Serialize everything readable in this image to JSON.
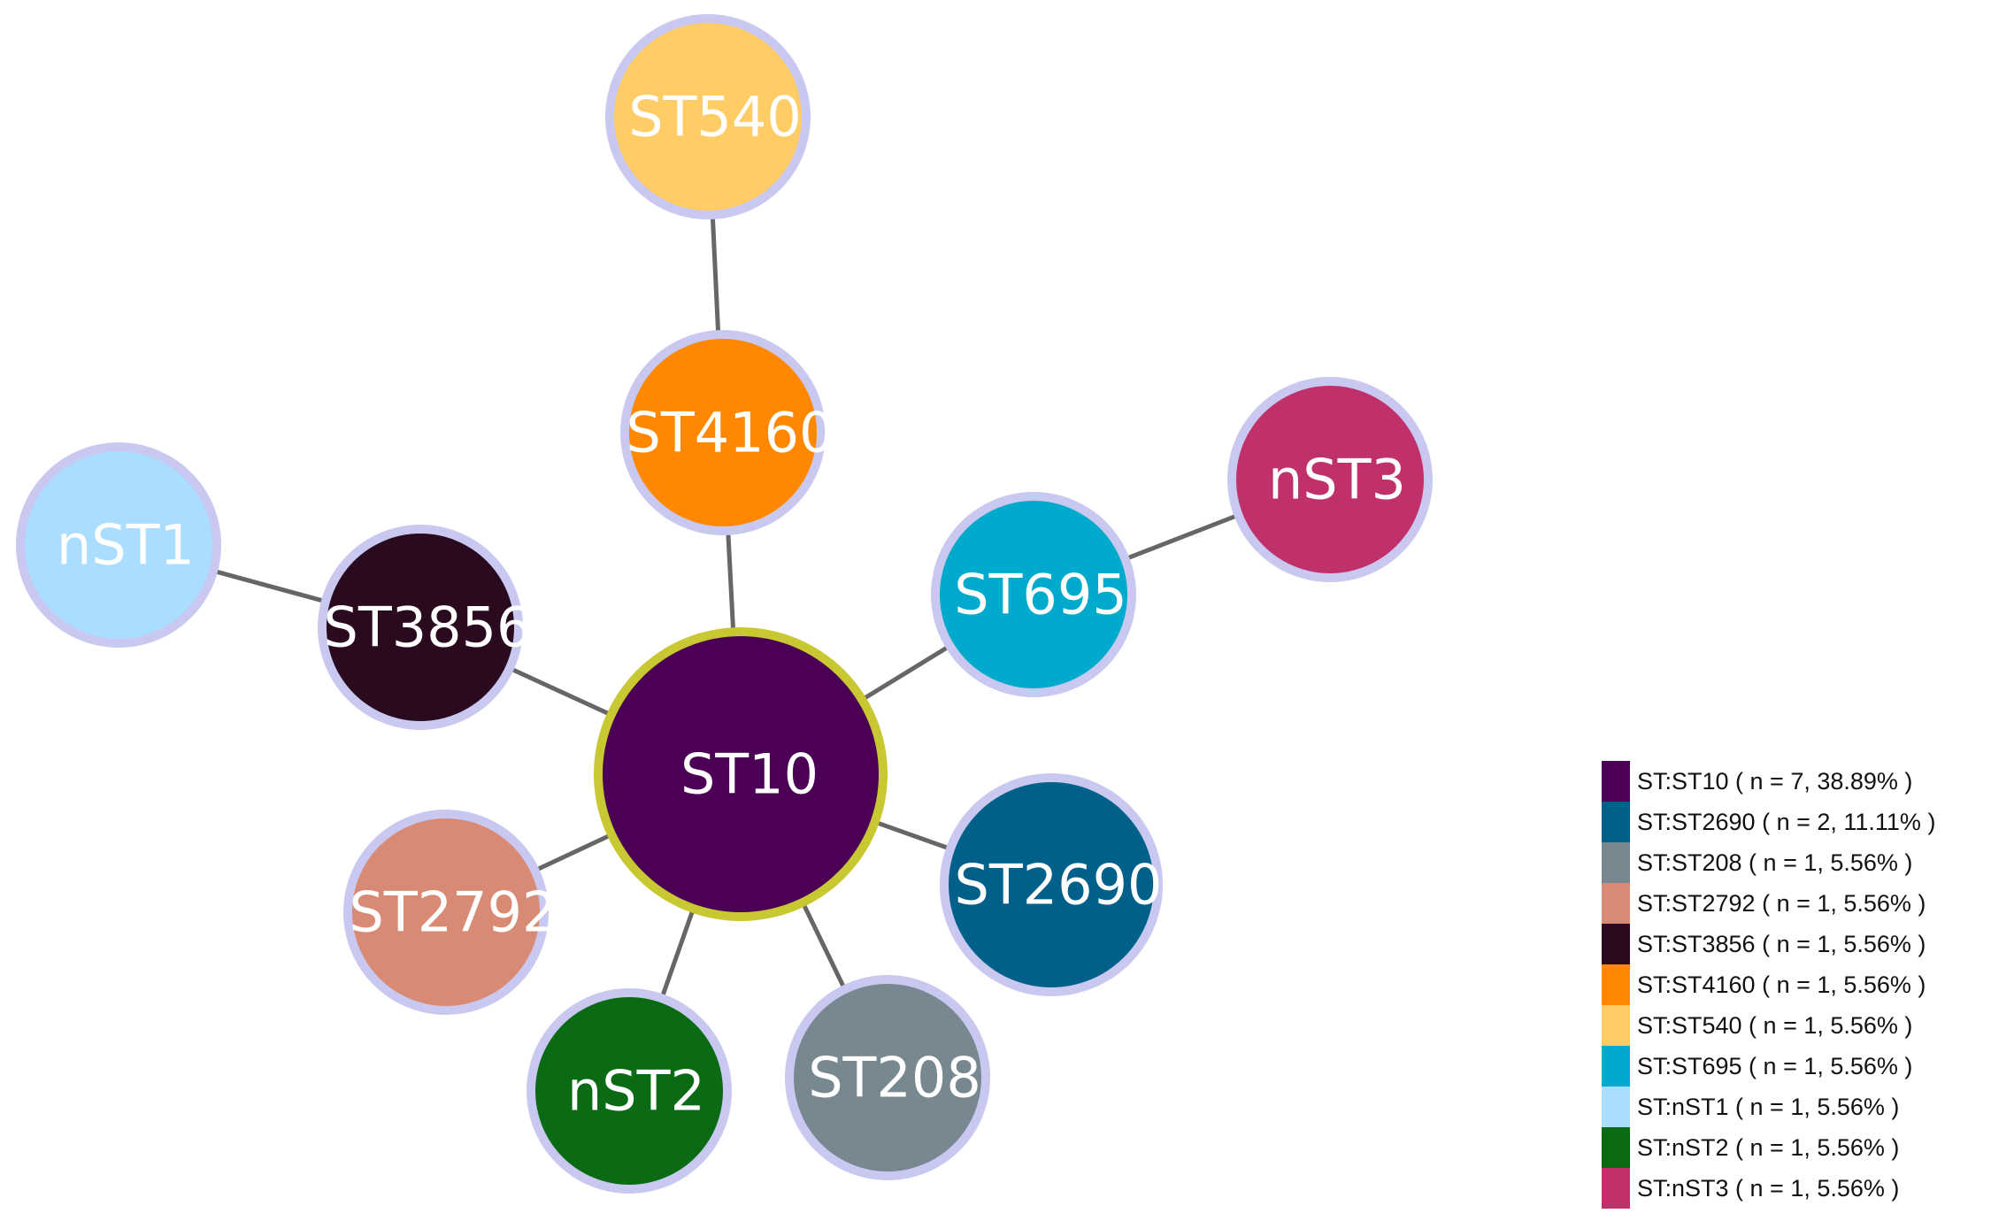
{
  "nodes": [
    "ST10",
    "ST540",
    "ST4160",
    "nST1",
    "ST3856",
    "nST3",
    "ST695",
    "ST2690",
    "ST2792",
    "nST2",
    "ST208"
  ],
  "legend": [
    "ST:ST10 ( n = 7, 38.89% )",
    "ST:ST2690 ( n = 2, 11.11% )",
    "ST:ST208 ( n = 1, 5.56% )",
    "ST:ST2792 ( n = 1, 5.56% )",
    "ST:ST3856 ( n = 1, 5.56% )",
    "ST:ST4160 ( n = 1, 5.56% )",
    "ST:ST540 ( n = 1, 5.56% )",
    "ST:ST695 ( n = 1, 5.56% )",
    "ST:nST1 ( n = 1, 5.56% )",
    "ST:nST2 ( n = 1, 5.56% )",
    "ST:nST3 ( n = 1, 5.56% )"
  ]
}
